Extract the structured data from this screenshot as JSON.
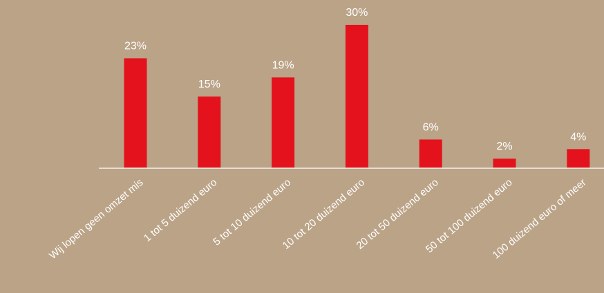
{
  "chart_data": {
    "type": "bar",
    "categories": [
      "Wij lopen geen omzet mis",
      "1 tot 5 duizend euro",
      "5 tot 10 duizend euro",
      "10 tot 20 duizend euro",
      "20 tot 50 duizend euro",
      "50 tot 100 duizend euro",
      "100 duizend euro of meer"
    ],
    "values": [
      23,
      15,
      19,
      30,
      6,
      2,
      4
    ],
    "value_labels": [
      "23%",
      "15%",
      "19%",
      "30%",
      "6%",
      "2%",
      "4%"
    ],
    "unit": "%",
    "title": "",
    "xlabel": "",
    "ylabel": "",
    "ylim": [
      0,
      30
    ],
    "grid": false,
    "legend": "none",
    "bar_color": "#e3121c",
    "background_color": "#bba387",
    "axis_color": "#e6ddd2",
    "text_color": "#ffffff"
  }
}
